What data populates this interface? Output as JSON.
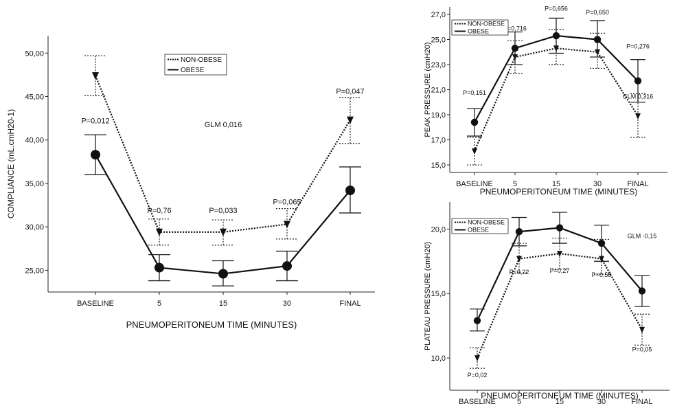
{
  "chart_data": [
    {
      "type": "line",
      "categories": [
        "BASELINE",
        "5",
        "15",
        "30",
        "FINAL"
      ],
      "xlabel": "PNEUMOPERITONEUM TIME (MINUTES)",
      "ylabel": "COMPLIANCE (mL.cmH20-1)",
      "ylim": [
        22.5,
        52
      ],
      "yticks": [
        "25,00",
        "30,00",
        "35,00",
        "40,00",
        "45,00",
        "50,00"
      ],
      "ytick_values": [
        25,
        30,
        35,
        40,
        45,
        50
      ],
      "legend_position": "top-center",
      "grid": false,
      "series": [
        {
          "name": "NON-OBESE",
          "style": "dotted",
          "marker": "triangle-down",
          "values": [
            47.4,
            29.4,
            29.4,
            30.3,
            42.3
          ],
          "err_low": [
            45.1,
            27.9,
            27.9,
            28.6,
            39.6
          ],
          "err_high": [
            49.7,
            30.9,
            30.8,
            32.1,
            44.9
          ]
        },
        {
          "name": "OBESE",
          "style": "solid",
          "marker": "circle",
          "values": [
            38.3,
            25.3,
            24.6,
            25.5,
            34.2
          ],
          "err_low": [
            36.0,
            23.8,
            23.2,
            23.8,
            31.6
          ],
          "err_high": [
            40.6,
            26.8,
            26.1,
            27.2,
            36.9
          ]
        }
      ],
      "annotations": [
        {
          "text": "P=0,012",
          "x": "BASELINE",
          "y": 41.9
        },
        {
          "text": "P=0,76",
          "x": "5",
          "y": 31.6
        },
        {
          "text": "P=0,033",
          "x": "15",
          "y": 31.6
        },
        {
          "text": "P=0,065",
          "x": "30",
          "y": 32.6
        },
        {
          "text": "P=0,047",
          "x": "FINAL",
          "y": 45.3
        },
        {
          "text": "GLM 0,016",
          "x": "15",
          "y": 41.5
        }
      ]
    },
    {
      "type": "line",
      "categories": [
        "BASELINE",
        "5",
        "15",
        "30",
        "FINAL"
      ],
      "xlabel": "PNEUMOPERITONEUM TIME (MINUTES)",
      "ylabel": "PEAK PRESSURE (cmH20)",
      "ylim": [
        14.4,
        27.6
      ],
      "yticks": [
        "15,0",
        "17,0",
        "19,0",
        "21,0",
        "23,0",
        "25,0",
        "27,0"
      ],
      "ytick_values": [
        15,
        17,
        19,
        21,
        23,
        25,
        27
      ],
      "legend_position": "top-left",
      "grid": false,
      "series": [
        {
          "name": "NON-OBESE",
          "style": "dotted",
          "marker": "triangle-down",
          "values": [
            16.1,
            23.6,
            24.3,
            24.0,
            18.9
          ],
          "err_low": [
            15.0,
            22.3,
            23.0,
            22.7,
            17.2
          ],
          "err_high": [
            17.2,
            24.9,
            25.8,
            25.5,
            20.7
          ]
        },
        {
          "name": "OBESE",
          "style": "solid",
          "marker": "circle",
          "values": [
            18.4,
            24.3,
            25.3,
            25.0,
            21.7
          ],
          "err_low": [
            17.3,
            23.0,
            23.9,
            23.6,
            20.0
          ],
          "err_high": [
            19.5,
            25.6,
            26.7,
            26.5,
            23.4
          ]
        }
      ],
      "annotations": [
        {
          "text": "P=0,151",
          "x": "BASELINE",
          "y": 20.6
        },
        {
          "text": "P=0,716",
          "x": "5",
          "y": 25.7
        },
        {
          "text": "P=0,656",
          "x": "15",
          "y": 27.3
        },
        {
          "text": "P=0,650",
          "x": "30",
          "y": 27.0
        },
        {
          "text": "P=0,276",
          "x": "FINAL",
          "y": 24.3
        },
        {
          "text": "GLM 0,316",
          "x": "FINAL",
          "y": 20.3
        }
      ]
    },
    {
      "type": "line",
      "categories": [
        "BASELINE",
        "5",
        "15",
        "30",
        "FINAL"
      ],
      "xlabel": "PNEUMOPERITONEUM TIME (MINUTES)",
      "ylabel": "PLATEAU PRESSURE (cmH20)",
      "ylim": [
        7.5,
        22.1
      ],
      "yticks": [
        "10,0",
        "15,0",
        "20,0"
      ],
      "ytick_values": [
        10,
        15,
        20
      ],
      "legend_position": "top-left",
      "grid": false,
      "series": [
        {
          "name": "NON-OBESE",
          "style": "dotted",
          "marker": "triangle-down",
          "values": [
            10.0,
            17.7,
            18.1,
            17.7,
            12.2
          ],
          "err_low": [
            9.2,
            16.6,
            16.9,
            16.5,
            11.0
          ],
          "err_high": [
            10.8,
            18.9,
            19.3,
            19.2,
            13.4
          ]
        },
        {
          "name": "OBESE",
          "style": "solid",
          "marker": "circle",
          "values": [
            12.9,
            19.8,
            20.1,
            18.9,
            15.2
          ],
          "err_low": [
            12.1,
            18.7,
            18.9,
            17.5,
            14.0
          ],
          "err_high": [
            13.8,
            20.9,
            21.3,
            20.3,
            16.4
          ]
        }
      ],
      "annotations": [
        {
          "text": "P=0,02",
          "x": "BASELINE",
          "y": 8.5
        },
        {
          "text": "P=0,22",
          "x": "5",
          "y": 16.5
        },
        {
          "text": "P=0,27",
          "x": "15",
          "y": 16.6
        },
        {
          "text": "P=0,58",
          "x": "30",
          "y": 16.3
        },
        {
          "text": "P=0,05",
          "x": "FINAL",
          "y": 10.5
        },
        {
          "text": "GLM -0,15",
          "x": "FINAL",
          "y": 19.3
        }
      ]
    }
  ]
}
